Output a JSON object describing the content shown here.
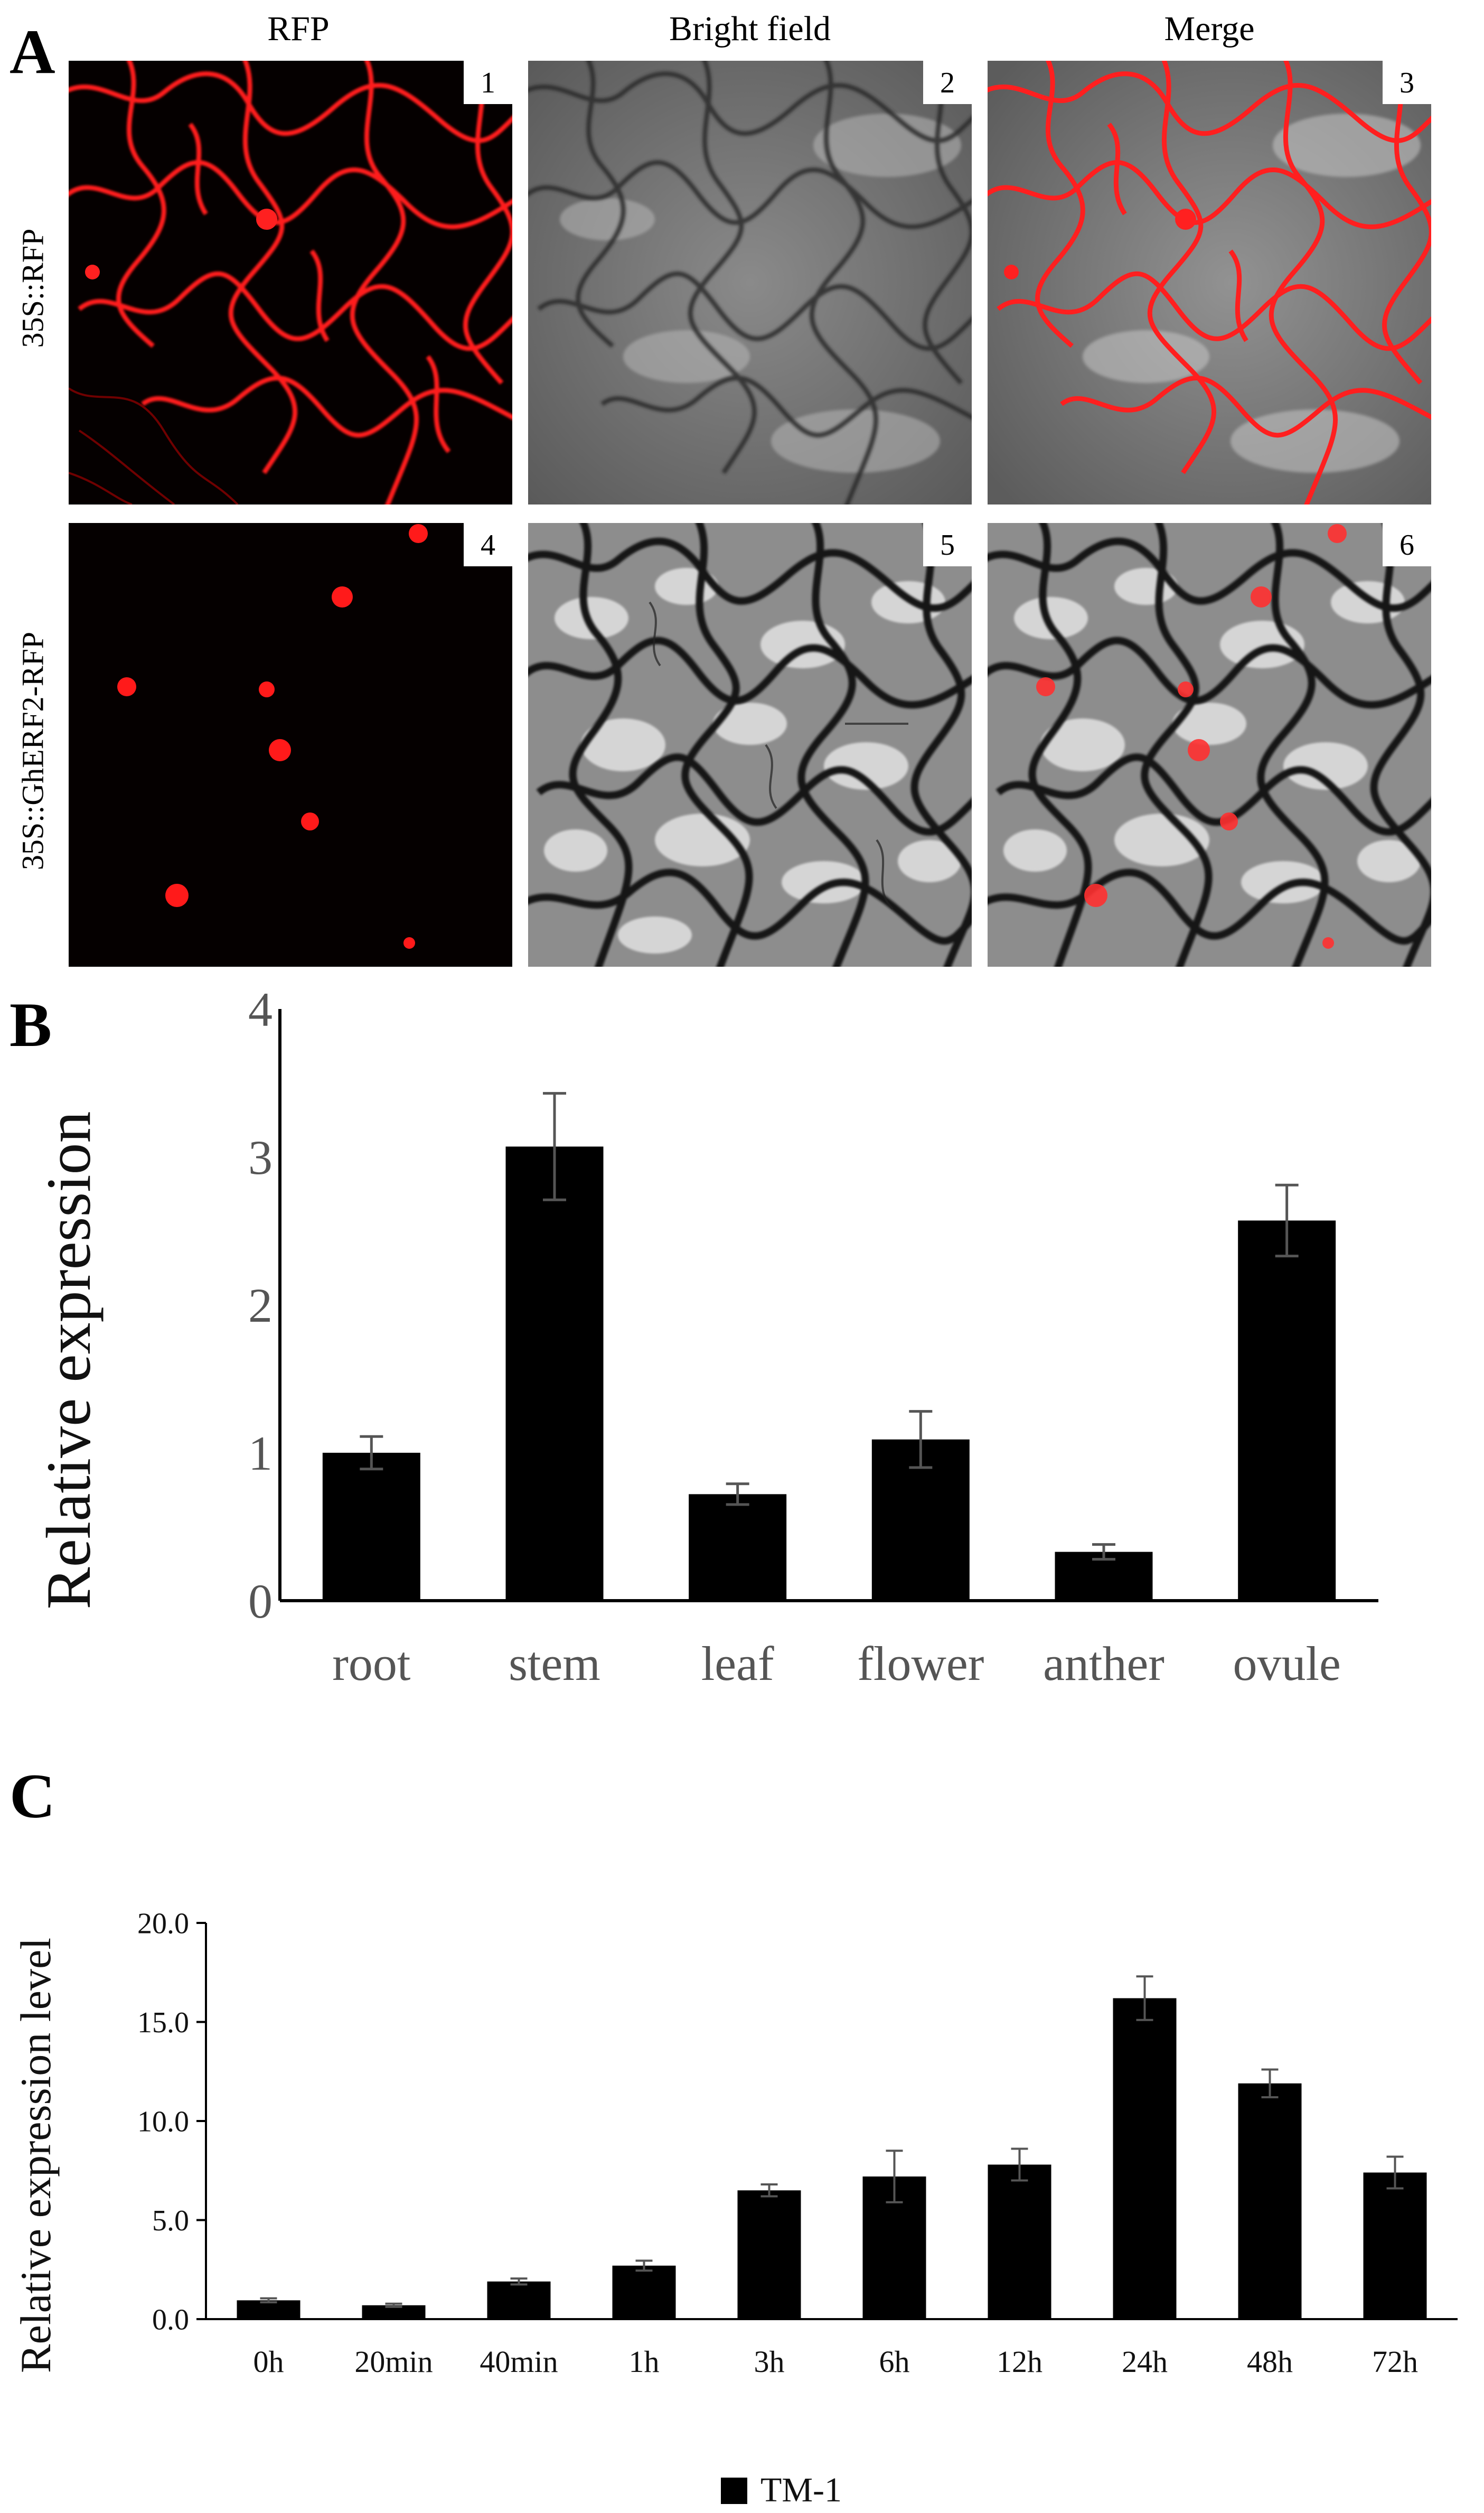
{
  "panels": {
    "a": {
      "letter": "A"
    },
    "b": {
      "letter": "B"
    },
    "c": {
      "letter": "C"
    }
  },
  "microscopy": {
    "columns": [
      "RFP",
      "Bright field",
      "Merge"
    ],
    "rows": [
      "35S::RFP",
      "35S::GhERF2-RFP"
    ],
    "tile_numbers": [
      "1",
      "2",
      "3",
      "4",
      "5",
      "6"
    ],
    "colors": {
      "rfp": "#ff1a1a",
      "background": "#050000"
    }
  },
  "chart_data": [
    {
      "type": "bar",
      "categories": [
        "root",
        "stem",
        "leaf",
        "flower",
        "anther",
        "ovule"
      ],
      "values": [
        1.0,
        3.07,
        0.72,
        1.09,
        0.33,
        2.57
      ],
      "errors": [
        0.11,
        0.36,
        0.07,
        0.19,
        0.05,
        0.24
      ],
      "title": "",
      "xlabel": "",
      "ylabel": "Relative expression",
      "ylim": [
        0,
        4
      ],
      "yticks": [
        "0",
        "1",
        "2",
        "3",
        "4"
      ],
      "bar_color": "#000000",
      "grid": false
    },
    {
      "type": "bar",
      "categories": [
        "0h",
        "20min",
        "40min",
        "1h",
        "3h",
        "6h",
        "12h",
        "24h",
        "48h",
        "72h"
      ],
      "values": [
        0.95,
        0.7,
        1.9,
        2.7,
        6.5,
        7.2,
        7.8,
        16.2,
        11.9,
        7.4
      ],
      "errors": [
        0.1,
        0.08,
        0.15,
        0.25,
        0.3,
        1.3,
        0.8,
        1.1,
        0.7,
        0.8
      ],
      "title": "",
      "xlabel": "",
      "ylabel": "Relative expression level",
      "ylim": [
        0,
        20
      ],
      "yticks": [
        "0.0",
        "5.0",
        "10.0",
        "15.0",
        "20.0"
      ],
      "series": [
        {
          "name": "TM-1",
          "values": [
            0.95,
            0.7,
            1.9,
            2.7,
            6.5,
            7.2,
            7.8,
            16.2,
            11.9,
            7.4
          ]
        }
      ],
      "legend": "bottom-center",
      "bar_color": "#000000",
      "grid": false
    }
  ]
}
